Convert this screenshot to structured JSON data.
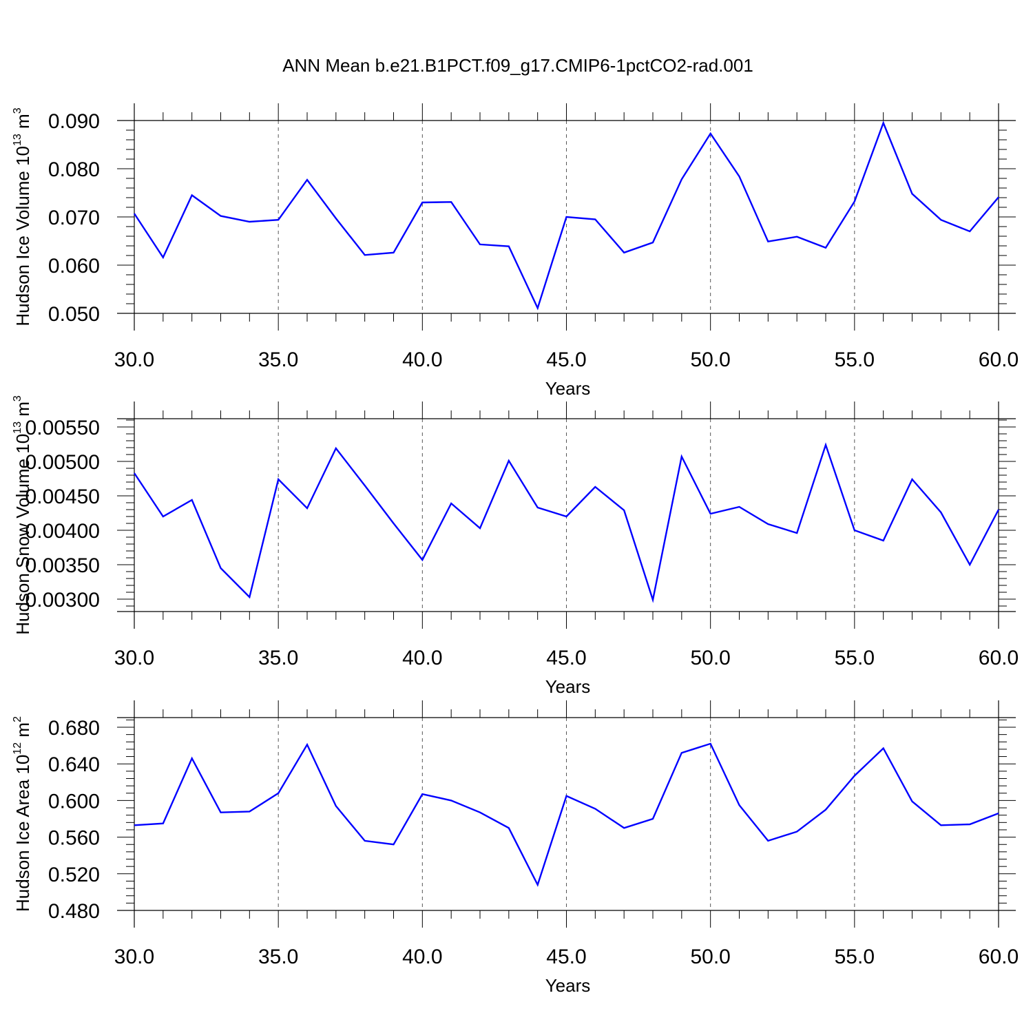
{
  "title": "ANN Mean b.e21.B1PCT.f09_g17.CMIP6-1pctCO2-rad.001",
  "colors": {
    "line": "#0000ff",
    "axis": "#000000",
    "grid": "#555555"
  },
  "chart_data": [
    {
      "type": "line",
      "ylabel": {
        "text": "Hudson Ice Volume 10",
        "exp": "13",
        "unit": " m",
        "unit_exp": "3"
      },
      "xlabel": "Years",
      "xlim": [
        30,
        60
      ],
      "ylim": [
        0.05,
        0.09
      ],
      "x_ticks": [
        "30.0",
        "35.0",
        "40.0",
        "45.0",
        "50.0",
        "55.0",
        "60.0"
      ],
      "y_ticks": [
        "0.050",
        "0.060",
        "0.070",
        "0.080",
        "0.090"
      ],
      "grid": "vertical dashed",
      "x": [
        30,
        31,
        32,
        33,
        34,
        35,
        36,
        37,
        38,
        39,
        40,
        41,
        42,
        43,
        44,
        45,
        46,
        47,
        48,
        49,
        50,
        51,
        52,
        53,
        54,
        55,
        56,
        57,
        58,
        59,
        60
      ],
      "series": [
        {
          "values": [
            0.0707,
            0.0616,
            0.0745,
            0.0702,
            0.069,
            0.0694,
            0.0777,
            0.0697,
            0.0621,
            0.0626,
            0.073,
            0.0731,
            0.0643,
            0.0639,
            0.0511,
            0.07,
            0.0695,
            0.0626,
            0.0647,
            0.0778,
            0.0873,
            0.0784,
            0.0649,
            0.0659,
            0.0636,
            0.0732,
            0.0895,
            0.0748,
            0.0694,
            0.067,
            0.0741
          ]
        }
      ]
    },
    {
      "type": "line",
      "ylabel": {
        "text": "Hudson Snow Volume 10",
        "exp": "13",
        "unit": " m",
        "unit_exp": "3"
      },
      "xlabel": "Years",
      "xlim": [
        30,
        60
      ],
      "ylim": [
        0.0028,
        0.0056
      ],
      "x_ticks": [
        "30.0",
        "35.0",
        "40.0",
        "45.0",
        "50.0",
        "55.0",
        "60.0"
      ],
      "y_ticks": [
        "0.00300",
        "0.00350",
        "0.00400",
        "0.00450",
        "0.00500",
        "0.00550"
      ],
      "grid": "vertical dashed",
      "x": [
        30,
        31,
        32,
        33,
        34,
        35,
        36,
        37,
        38,
        39,
        40,
        41,
        42,
        43,
        44,
        45,
        46,
        47,
        48,
        49,
        50,
        51,
        52,
        53,
        54,
        55,
        56,
        57,
        58,
        59,
        60
      ],
      "series": [
        {
          "values": [
            0.00483,
            0.0042,
            0.00444,
            0.00345,
            0.00303,
            0.00474,
            0.00432,
            0.00519,
            0.00465,
            0.0041,
            0.00357,
            0.00439,
            0.00403,
            0.00501,
            0.00433,
            0.0042,
            0.00463,
            0.00429,
            0.00299,
            0.00507,
            0.00424,
            0.00434,
            0.00409,
            0.00396,
            0.00524,
            0.004,
            0.00385,
            0.00474,
            0.00426,
            0.0035,
            0.0043
          ]
        }
      ]
    },
    {
      "type": "line",
      "ylabel": {
        "text": "Hudson Ice Area 10",
        "exp": "12",
        "unit": " m",
        "unit_exp": "2"
      },
      "xlabel": "Years",
      "xlim": [
        30,
        60
      ],
      "ylim": [
        0.48,
        0.69
      ],
      "x_ticks": [
        "30.0",
        "35.0",
        "40.0",
        "45.0",
        "50.0",
        "55.0",
        "60.0"
      ],
      "y_ticks": [
        "0.480",
        "0.520",
        "0.560",
        "0.600",
        "0.640",
        "0.680"
      ],
      "grid": "vertical dashed",
      "x": [
        30,
        31,
        32,
        33,
        34,
        35,
        36,
        37,
        38,
        39,
        40,
        41,
        42,
        43,
        44,
        45,
        46,
        47,
        48,
        49,
        50,
        51,
        52,
        53,
        54,
        55,
        56,
        57,
        58,
        59,
        60
      ],
      "series": [
        {
          "values": [
            0.573,
            0.575,
            0.646,
            0.587,
            0.588,
            0.608,
            0.661,
            0.594,
            0.556,
            0.552,
            0.607,
            0.6,
            0.587,
            0.57,
            0.508,
            0.605,
            0.591,
            0.57,
            0.58,
            0.652,
            0.662,
            0.595,
            0.556,
            0.566,
            0.59,
            0.627,
            0.657,
            0.599,
            0.573,
            0.574,
            0.586
          ]
        }
      ]
    }
  ]
}
